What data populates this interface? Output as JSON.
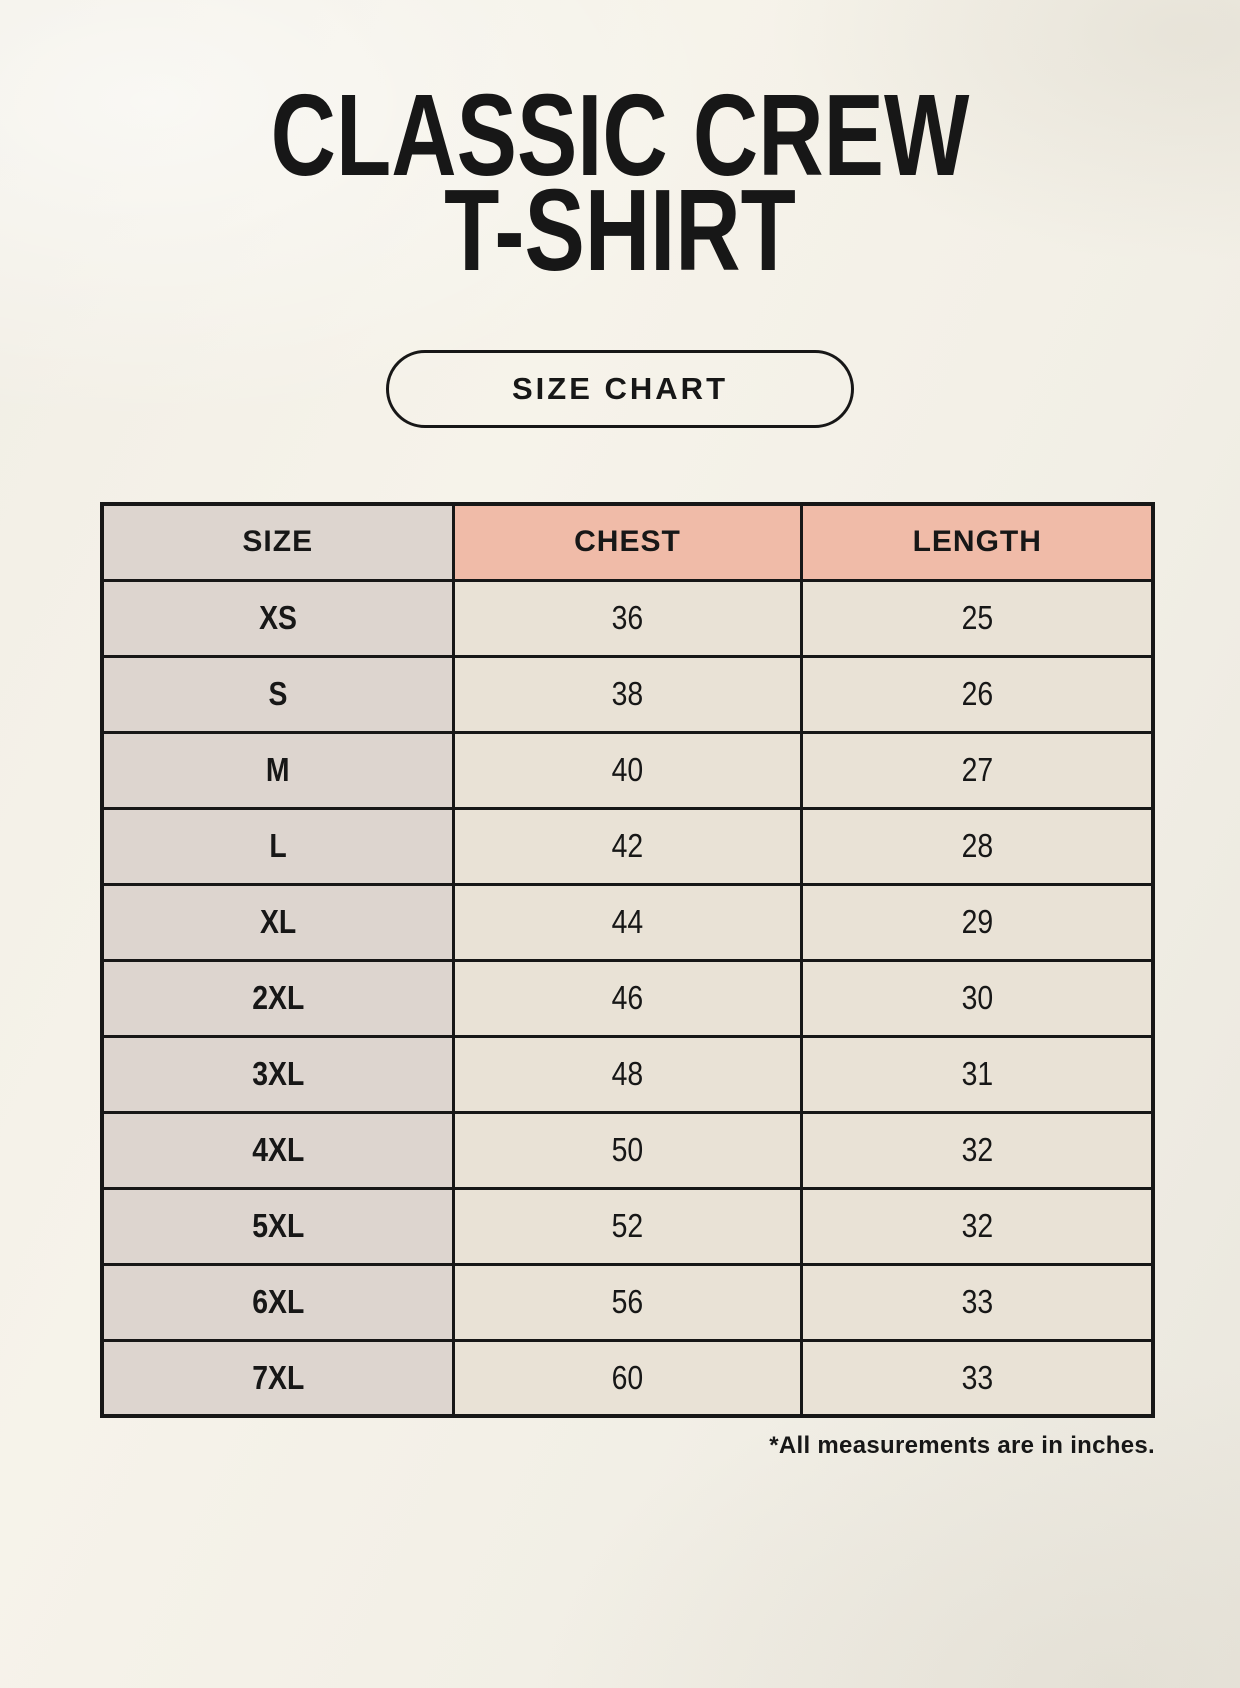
{
  "title": {
    "line1": "CLASSIC CREW",
    "line2": "T-SHIRT"
  },
  "badge_label": "SIZE CHART",
  "footnote": "*All measurements are in inches.",
  "colors": {
    "page_bg": "#f3f0e7",
    "accent_salmon": "#f0bba8",
    "size_column_bg": "#ddd5cf",
    "cell_bg": "#e9e2d6",
    "border": "#171717",
    "text": "#171717"
  },
  "chart_data": {
    "type": "table",
    "title": "SIZE CHART",
    "columns": [
      "SIZE",
      "CHEST",
      "LENGTH"
    ],
    "rows": [
      [
        "XS",
        "36",
        "25"
      ],
      [
        "S",
        "38",
        "26"
      ],
      [
        "M",
        "40",
        "27"
      ],
      [
        "L",
        "42",
        "28"
      ],
      [
        "XL",
        "44",
        "29"
      ],
      [
        "2XL",
        "46",
        "30"
      ],
      [
        "3XL",
        "48",
        "31"
      ],
      [
        "4XL",
        "50",
        "32"
      ],
      [
        "5XL",
        "52",
        "32"
      ],
      [
        "6XL",
        "56",
        "33"
      ],
      [
        "7XL",
        "60",
        "33"
      ]
    ],
    "units": "inches"
  }
}
